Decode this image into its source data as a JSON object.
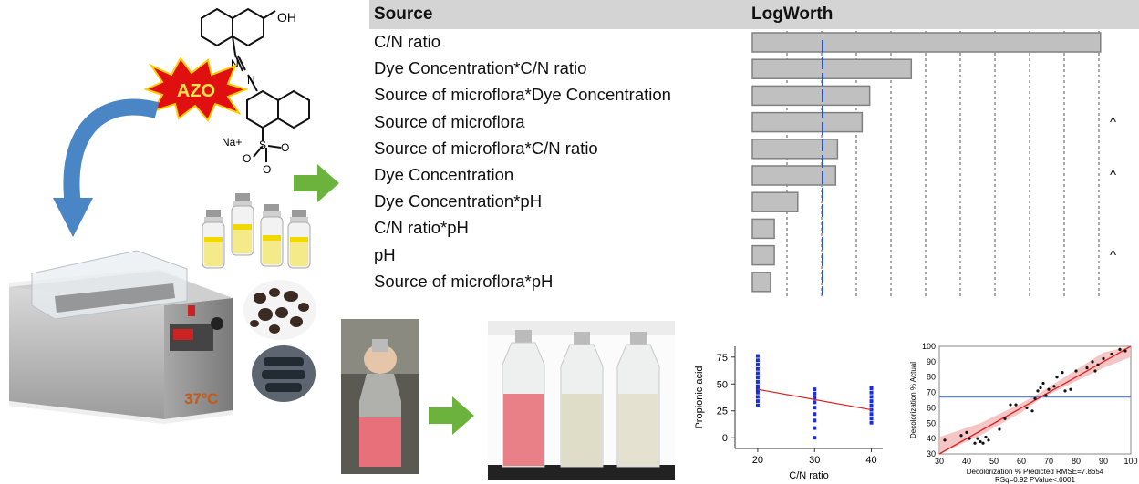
{
  "chemical": {
    "oh_label": "OH",
    "azo_label": "AZO",
    "na_label": "Na+",
    "o_minus_label": "O",
    "s_label": "S",
    "o_label": "O",
    "o2_label": "O",
    "n1_label": "N",
    "n2_label": "N"
  },
  "bath": {
    "temperature_label": "37ºC"
  },
  "effects_table": {
    "header_source": "Source",
    "header_logworth": "LogWorth",
    "rows": [
      {
        "source": "C/N ratio",
        "logworth": 9.2,
        "caret": ""
      },
      {
        "source": "Dye Concentration*C/N ratio",
        "logworth": 4.2,
        "caret": ""
      },
      {
        "source": "Source of microflora*Dye Concentration",
        "logworth": 3.1,
        "caret": ""
      },
      {
        "source": "Source of microflora",
        "logworth": 2.9,
        "caret": "^"
      },
      {
        "source": "Source of microflora*C/N ratio",
        "logworth": 2.25,
        "caret": ""
      },
      {
        "source": "Dye Concentration",
        "logworth": 2.2,
        "caret": "^"
      },
      {
        "source": "Dye Concentration*pH",
        "logworth": 1.2,
        "caret": ""
      },
      {
        "source": "C/N ratio*pH",
        "logworth": 0.58,
        "caret": ""
      },
      {
        "source": "pH",
        "logworth": 0.58,
        "caret": "^"
      },
      {
        "source": "Source of microflora*pH",
        "logworth": 0.48,
        "caret": ""
      }
    ],
    "reference_logworth": 2.0,
    "colors": {
      "bar_fill": "#c0c0c0",
      "bar_stroke": "#808080",
      "reference_line": "#2255dd"
    }
  },
  "chart_data": [
    {
      "type": "scatter",
      "xlabel": "C/N ratio",
      "ylabel": "Propionic acid",
      "x_ticks": [
        20,
        30,
        40
      ],
      "y_ticks": [
        0,
        25,
        50,
        75
      ],
      "xlim": [
        16,
        42
      ],
      "ylim": [
        -10,
        85
      ],
      "points": [
        [
          20,
          30
        ],
        [
          20,
          34
        ],
        [
          20,
          38
        ],
        [
          20,
          42
        ],
        [
          20,
          45
        ],
        [
          20,
          48
        ],
        [
          20,
          52
        ],
        [
          20,
          56
        ],
        [
          20,
          60
        ],
        [
          20,
          64
        ],
        [
          20,
          68
        ],
        [
          20,
          72
        ],
        [
          20,
          76
        ],
        [
          30,
          0
        ],
        [
          30,
          9
        ],
        [
          30,
          16
        ],
        [
          30,
          22
        ],
        [
          30,
          28
        ],
        [
          30,
          33
        ],
        [
          30,
          37
        ],
        [
          30,
          41
        ],
        [
          30,
          45
        ],
        [
          40,
          14
        ],
        [
          40,
          18
        ],
        [
          40,
          22
        ],
        [
          40,
          26
        ],
        [
          40,
          30
        ],
        [
          40,
          34
        ],
        [
          40,
          38
        ],
        [
          40,
          42
        ],
        [
          40,
          46
        ]
      ],
      "fit_line": [
        [
          20,
          45
        ],
        [
          40,
          26
        ]
      ],
      "colors": {
        "points": "#1a2ee0",
        "fit": "#dd2222"
      }
    },
    {
      "type": "scatter",
      "xlabel": "Decolorization % Predicted RMSE=7.8654",
      "xlabel2": "RSq=0.92 PValue<.0001",
      "ylabel": "Decolorization % Actual",
      "x_ticks": [
        30,
        40,
        50,
        60,
        70,
        80,
        90,
        100
      ],
      "y_ticks": [
        30,
        40,
        50,
        60,
        70,
        80,
        90,
        100
      ],
      "xlim": [
        30,
        100
      ],
      "ylim": [
        30,
        100
      ],
      "mean_line": 67,
      "points": [
        [
          32,
          39
        ],
        [
          38,
          42
        ],
        [
          40,
          44
        ],
        [
          41,
          40
        ],
        [
          43,
          37
        ],
        [
          44,
          40
        ],
        [
          45,
          38
        ],
        [
          46,
          37
        ],
        [
          47,
          41
        ],
        [
          48,
          39
        ],
        [
          52,
          46
        ],
        [
          54,
          53
        ],
        [
          56,
          62
        ],
        [
          58,
          62
        ],
        [
          62,
          60
        ],
        [
          64,
          58
        ],
        [
          65,
          66
        ],
        [
          66,
          71
        ],
        [
          67,
          73
        ],
        [
          68,
          76
        ],
        [
          69,
          68
        ],
        [
          70,
          72
        ],
        [
          72,
          74
        ],
        [
          73,
          80
        ],
        [
          75,
          83
        ],
        [
          76,
          71
        ],
        [
          78,
          72
        ],
        [
          80,
          84
        ],
        [
          84,
          86
        ],
        [
          86,
          90
        ],
        [
          87,
          84
        ],
        [
          88,
          88
        ],
        [
          90,
          92
        ],
        [
          93,
          95
        ],
        [
          96,
          98
        ],
        [
          98,
          97
        ]
      ],
      "fit_line": [
        [
          30,
          30
        ],
        [
          100,
          100
        ]
      ],
      "colors": {
        "points": "#111111",
        "fit": "#dd2222",
        "band": "#f2b8b8",
        "mean": "#5588ee"
      }
    }
  ]
}
